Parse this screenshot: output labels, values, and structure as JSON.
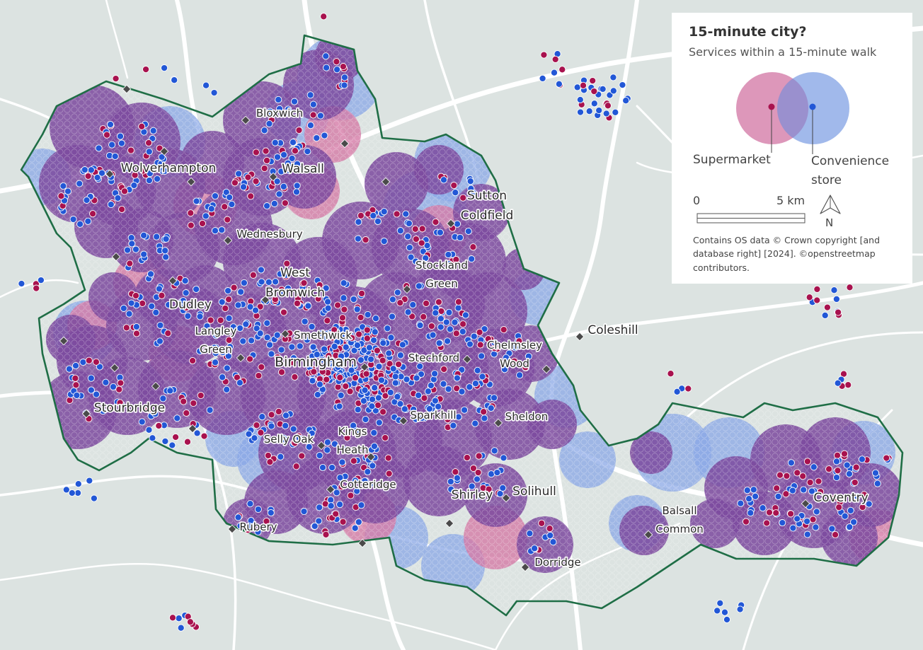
{
  "map": {
    "colors": {
      "background": "#dce3e1",
      "roads": "#ffffff",
      "boundary": "#1f6e46",
      "supermarket": "#a8124e",
      "convenience_store": "#2257d6",
      "both_coverage": "#7d4a9e",
      "supermarket_coverage": "#d47aa6",
      "convenience_coverage": "#8aa7e6",
      "town_marker": "#4a4a4a"
    },
    "places": [
      {
        "id": "bloxwich",
        "lines": [
          "Bloxwich"
        ],
        "size": "small"
      },
      {
        "id": "wolverhampton",
        "lines": [
          "Wolverhampton"
        ],
        "size": "mid"
      },
      {
        "id": "walsall",
        "lines": [
          "Walsall"
        ],
        "size": "mid"
      },
      {
        "id": "sutton-coldfield",
        "lines": [
          "Sutton",
          "Coldfield"
        ],
        "size": "mid"
      },
      {
        "id": "wednesbury",
        "lines": [
          "Wednesbury"
        ],
        "size": "small"
      },
      {
        "id": "west-bromwich",
        "lines": [
          "West",
          "Bromwich"
        ],
        "size": "mid"
      },
      {
        "id": "stockland-green",
        "lines": [
          "Stockland",
          "Green"
        ],
        "size": "small"
      },
      {
        "id": "dudley",
        "lines": [
          "Dudley"
        ],
        "size": "mid"
      },
      {
        "id": "langley-green",
        "lines": [
          "Langley",
          "Green"
        ],
        "size": "small"
      },
      {
        "id": "smethwick",
        "lines": [
          "Smethwick"
        ],
        "size": "small"
      },
      {
        "id": "coleshill",
        "lines": [
          "Coleshill"
        ],
        "size": "mid"
      },
      {
        "id": "chelmsley-wood",
        "lines": [
          "Chelmsley",
          "Wood"
        ],
        "size": "small"
      },
      {
        "id": "birmingham",
        "lines": [
          "Birmingham"
        ],
        "size": "big"
      },
      {
        "id": "stechford",
        "lines": [
          "Stechford"
        ],
        "size": "small"
      },
      {
        "id": "stourbridge",
        "lines": [
          "Stourbridge"
        ],
        "size": "mid"
      },
      {
        "id": "sparkhill",
        "lines": [
          "Sparkhill"
        ],
        "size": "small"
      },
      {
        "id": "sheldon",
        "lines": [
          "Sheldon"
        ],
        "size": "small"
      },
      {
        "id": "selly-oak",
        "lines": [
          "Selly Oak"
        ],
        "size": "small"
      },
      {
        "id": "kings-heath",
        "lines": [
          "Kings",
          "Heath"
        ],
        "size": "small"
      },
      {
        "id": "cotteridge",
        "lines": [
          "Cotteridge"
        ],
        "size": "small"
      },
      {
        "id": "shirley",
        "lines": [
          "Shirley"
        ],
        "size": "mid"
      },
      {
        "id": "solihull",
        "lines": [
          "Solihull"
        ],
        "size": "mid"
      },
      {
        "id": "coventry",
        "lines": [
          "Coventry"
        ],
        "size": "mid"
      },
      {
        "id": "rubery",
        "lines": [
          "Rubery"
        ],
        "size": "small"
      },
      {
        "id": "balsall-common",
        "lines": [
          "Balsall",
          "Common"
        ],
        "size": "small"
      },
      {
        "id": "dorridge",
        "lines": [
          "Dorridge"
        ],
        "size": "small"
      }
    ]
  },
  "legend": {
    "title": "15-minute city?",
    "subtitle": "Services within a 15-minute walk",
    "supermarket_label": "Supermarket",
    "convenience_label_line1": "Convenience",
    "convenience_label_line2": "store",
    "scale_start": "0",
    "scale_end": "5 km",
    "north_label": "N",
    "credit": "Contains OS data © Crown copyright [and database right] [2024].  ©openstreetmap contributors."
  }
}
